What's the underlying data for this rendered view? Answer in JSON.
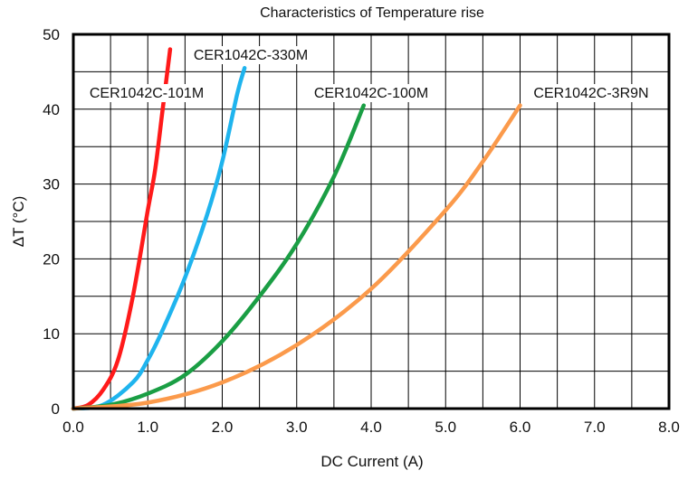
{
  "chart_data": {
    "type": "line",
    "title": "Characteristics of Temperature rise",
    "xlabel": "DC Current (A)",
    "ylabel": "ΔT (°C)",
    "xlim": [
      0,
      8
    ],
    "ylim": [
      0,
      50
    ],
    "x_ticks": [
      "0.0",
      "1.0",
      "2.0",
      "3.0",
      "4.0",
      "5.0",
      "6.0",
      "7.0",
      "8.0"
    ],
    "y_ticks": [
      "0",
      "10",
      "20",
      "30",
      "40",
      "50"
    ],
    "grid": true,
    "series": [
      {
        "name": "CER1042C-101M",
        "color": "#ff1a1a",
        "points": [
          [
            0.0,
            0.0
          ],
          [
            0.2,
            0.5
          ],
          [
            0.4,
            2.5
          ],
          [
            0.6,
            6.5
          ],
          [
            0.8,
            15.0
          ],
          [
            1.0,
            26.5
          ],
          [
            1.1,
            32.0
          ],
          [
            1.2,
            40.0
          ],
          [
            1.3,
            48.0
          ]
        ]
      },
      {
        "name": "CER1042C-330M",
        "color": "#1fb4ee",
        "points": [
          [
            0.0,
            0.0
          ],
          [
            0.4,
            0.5
          ],
          [
            0.8,
            3.5
          ],
          [
            1.0,
            6.5
          ],
          [
            1.2,
            10.5
          ],
          [
            1.5,
            17.5
          ],
          [
            1.8,
            26.0
          ],
          [
            2.0,
            33.0
          ],
          [
            2.2,
            42.0
          ],
          [
            2.3,
            45.5
          ]
        ]
      },
      {
        "name": "CER1042C-100M",
        "color": "#1a9e44",
        "points": [
          [
            0.0,
            0.0
          ],
          [
            0.5,
            0.5
          ],
          [
            1.0,
            2.0
          ],
          [
            1.5,
            4.5
          ],
          [
            2.0,
            9.0
          ],
          [
            2.5,
            15.0
          ],
          [
            3.0,
            22.0
          ],
          [
            3.5,
            31.0
          ],
          [
            3.9,
            40.5
          ]
        ]
      },
      {
        "name": "CER1042C-3R9N",
        "color": "#fb9a4b",
        "points": [
          [
            0.0,
            0.0
          ],
          [
            1.0,
            0.8
          ],
          [
            2.0,
            3.5
          ],
          [
            3.0,
            8.5
          ],
          [
            4.0,
            16.0
          ],
          [
            5.0,
            26.5
          ],
          [
            5.5,
            33.0
          ],
          [
            6.0,
            40.5
          ]
        ]
      }
    ],
    "annotations": [
      {
        "text": "CER1042C-101M"
      },
      {
        "text": "CER1042C-330M"
      },
      {
        "text": "CER1042C-100M"
      },
      {
        "text": "CER1042C-3R9N"
      }
    ]
  }
}
